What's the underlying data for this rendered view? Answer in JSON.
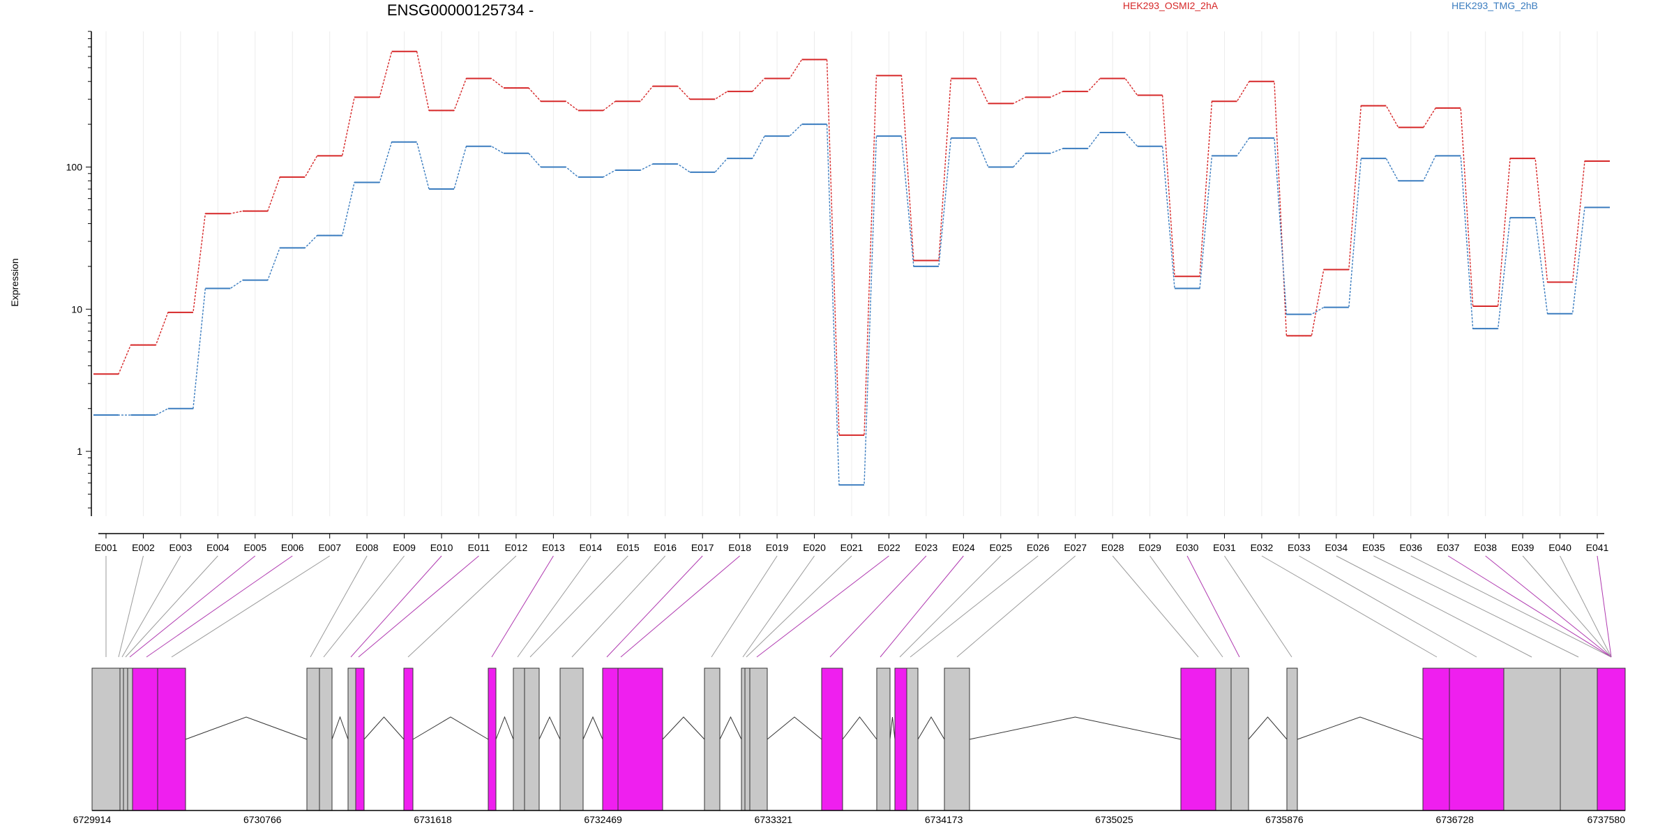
{
  "chart_data": {
    "type": "line",
    "title": "ENSG00000125734 -",
    "ylabel": "Expression",
    "yscale": "log",
    "ylim": [
      0.35,
      900
    ],
    "yticks": [
      1,
      10,
      100
    ],
    "grid": "vertical",
    "legend_position": "top",
    "categories": [
      "E001",
      "E002",
      "E003",
      "E004",
      "E005",
      "E006",
      "E007",
      "E008",
      "E009",
      "E010",
      "E011",
      "E012",
      "E013",
      "E014",
      "E015",
      "E016",
      "E017",
      "E018",
      "E019",
      "E020",
      "E021",
      "E022",
      "E023",
      "E024",
      "E025",
      "E026",
      "E027",
      "E028",
      "E029",
      "E030",
      "E031",
      "E032",
      "E033",
      "E034",
      "E035",
      "E036",
      "E037",
      "E038",
      "E039",
      "E040",
      "E041"
    ],
    "series": [
      {
        "name": "HEK293_OSMI2_2hA",
        "color": "#d62728",
        "values": [
          3.5,
          5.6,
          9.5,
          47,
          49,
          85,
          120,
          310,
          650,
          250,
          420,
          360,
          290,
          250,
          290,
          370,
          300,
          340,
          420,
          570,
          1.3,
          440,
          22,
          420,
          280,
          310,
          340,
          420,
          320,
          17,
          290,
          400,
          6.5,
          19,
          270,
          190,
          260,
          10.5,
          115,
          15.5,
          110
        ]
      },
      {
        "name": "HEK293_TMG_2hB",
        "color": "#3a7cbf",
        "values": [
          1.8,
          1.8,
          2.0,
          14,
          16,
          27,
          33,
          78,
          150,
          70,
          140,
          125,
          100,
          85,
          95,
          105,
          92,
          115,
          165,
          200,
          0.58,
          165,
          20,
          160,
          100,
          125,
          135,
          175,
          140,
          14,
          120,
          160,
          9.2,
          10.3,
          115,
          80,
          120,
          7.3,
          44,
          9.3,
          52
        ]
      }
    ],
    "gene_model": {
      "coordinate_labels": [
        "6729914",
        "6730766",
        "6731618",
        "6732469",
        "6733321",
        "6734173",
        "6735025",
        "6735876",
        "6736728",
        "6737580"
      ],
      "coordinate_range": [
        6729914,
        6737580
      ],
      "exon_colors": {
        "normal": "#c8c8c8",
        "highlighted": "#ef1fef"
      }
    }
  }
}
